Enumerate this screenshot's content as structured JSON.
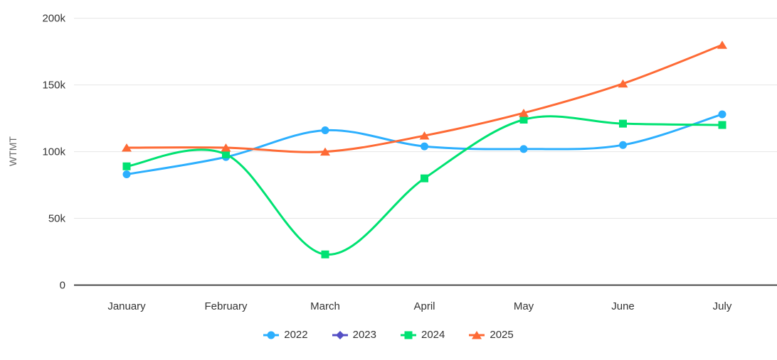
{
  "chart_data": {
    "type": "line",
    "subtype": "spline",
    "title": "",
    "xlabel": "",
    "ylabel": "WTMT",
    "ylim": [
      0,
      200000
    ],
    "grid": true,
    "legend_position": "bottom",
    "categories": [
      "January",
      "February",
      "March",
      "April",
      "May",
      "June",
      "July"
    ],
    "yticks": [
      {
        "value": 0,
        "label": "0"
      },
      {
        "value": 50000,
        "label": "50k"
      },
      {
        "value": 100000,
        "label": "100k"
      },
      {
        "value": 150000,
        "label": "150k"
      },
      {
        "value": 200000,
        "label": "200k"
      }
    ],
    "series": [
      {
        "name": "2022",
        "color": "#2CAFFE",
        "marker": "circle",
        "values": [
          83000,
          96000,
          116000,
          104000,
          102000,
          105000,
          128000
        ]
      },
      {
        "name": "2023",
        "color": "#544FC5",
        "marker": "diamond",
        "values": []
      },
      {
        "name": "2024",
        "color": "#00E272",
        "marker": "square",
        "values": [
          89000,
          98000,
          23000,
          80000,
          124000,
          121000,
          120000
        ]
      },
      {
        "name": "2025",
        "color": "#FE6A35",
        "marker": "triangle",
        "values": [
          103000,
          103000,
          100000,
          112000,
          129000,
          151000,
          180000
        ]
      }
    ],
    "colors": {
      "gridline": "#e6e6e6",
      "axis_line": "#333333",
      "tick_label": "#333333",
      "axis_title": "#666666",
      "legend_text": "#333333"
    }
  }
}
